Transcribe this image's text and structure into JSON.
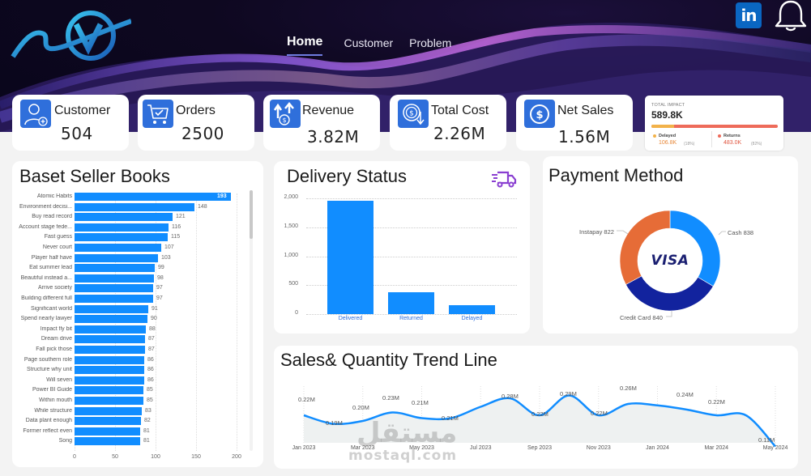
{
  "header": {
    "nav": [
      {
        "label": "Home",
        "active": true
      },
      {
        "label": "Customer",
        "active": false
      },
      {
        "label": "Problem",
        "active": false
      }
    ],
    "linkedin_label": "in",
    "icons": [
      "logo",
      "linkedin-icon",
      "bell-icon"
    ]
  },
  "kpis": [
    {
      "label": "Customer",
      "value": "504",
      "icon": "user-add-icon"
    },
    {
      "label": "Orders",
      "value": "2500",
      "icon": "cart-check-icon"
    },
    {
      "label": "Revenue",
      "value": "3.82M",
      "icon": "revenue-up-icon"
    },
    {
      "label": "Total Cost",
      "value": "2.26M",
      "icon": "cost-down-icon"
    },
    {
      "label": "Net Sales",
      "value": "1.56M",
      "icon": "dollar-circle-icon"
    }
  ],
  "impact": {
    "title": "TOTAL IMPACT",
    "value": "589.8K",
    "delayed_label": "Delayed",
    "delayed_value": "106.8K",
    "delayed_pct": "(18%)",
    "returns_label": "Returns",
    "returns_value": "483.0K",
    "returns_pct": "(82%)",
    "colors": {
      "delayed": "#f2b24a",
      "returns": "#ee6b5a"
    }
  },
  "books": {
    "title": "Baset Seller Books",
    "x_ticks": [
      "0",
      "50",
      "100",
      "150",
      "200"
    ],
    "items": [
      {
        "name": "Atomic Habits",
        "value": 193
      },
      {
        "name": "Environment decisi...",
        "value": 148
      },
      {
        "name": "Buy read record",
        "value": 121
      },
      {
        "name": "Account stage fede...",
        "value": 116
      },
      {
        "name": "Fast guess",
        "value": 115
      },
      {
        "name": "Never court",
        "value": 107
      },
      {
        "name": "Player half have",
        "value": 103
      },
      {
        "name": "Eat summer lead",
        "value": 99
      },
      {
        "name": "Beautiful instead a...",
        "value": 98
      },
      {
        "name": "Arrive society",
        "value": 97
      },
      {
        "name": "Building different full",
        "value": 97
      },
      {
        "name": "Significant world",
        "value": 91
      },
      {
        "name": "Spend nearly lawyer",
        "value": 90
      },
      {
        "name": "Impact fly bit",
        "value": 88
      },
      {
        "name": "Dream drive",
        "value": 87
      },
      {
        "name": "Fall pick those",
        "value": 87
      },
      {
        "name": "Page southern role",
        "value": 86
      },
      {
        "name": "Structure why unit",
        "value": 86
      },
      {
        "name": "Will seven",
        "value": 86
      },
      {
        "name": "Power BI Guide",
        "value": 85
      },
      {
        "name": "Within mouth",
        "value": 85
      },
      {
        "name": "While structure",
        "value": 83
      },
      {
        "name": "Data plant enough",
        "value": 82
      },
      {
        "name": "Former reflect even",
        "value": 81
      },
      {
        "name": "Song",
        "value": 81
      }
    ]
  },
  "delivery": {
    "title": "Delivery Status",
    "y_ticks": [
      "2,000",
      "1,500",
      "1,000",
      "500",
      "0"
    ],
    "categories": [
      "Delivered",
      "Returned",
      "Delayed"
    ],
    "values": [
      1960,
      380,
      160
    ]
  },
  "payment": {
    "title": "Payment Method",
    "center_label": "VISA",
    "slices": [
      {
        "label": "Cash 838",
        "name": "Cash",
        "value": 838,
        "color": "#118dff"
      },
      {
        "label": "Credit Card 840",
        "name": "Credit Card",
        "value": 840,
        "color": "#12239e"
      },
      {
        "label": "Instapay 822",
        "name": "Instapay",
        "value": 822,
        "color": "#e66c37"
      }
    ]
  },
  "trend": {
    "title": "Sales& Quantity Trend Line",
    "x_ticks": [
      "Jan 2023",
      "Mar 2023",
      "May 2023",
      "Jul 2023",
      "Sep 2023",
      "Nov 2023",
      "Jan 2024",
      "Mar 2024",
      "May 2024"
    ],
    "points": [
      {
        "month": "Jan 2023",
        "label": "0.22M"
      },
      {
        "month": "Feb 2023",
        "label": "0.19M"
      },
      {
        "month": "Mar 2023",
        "label": "0.20M"
      },
      {
        "month": "Apr 2023",
        "label": "0.23M"
      },
      {
        "month": "May 2023",
        "label": "0.21M"
      },
      {
        "month": "Jun 2023",
        "label": "0.21M"
      },
      {
        "month": "Jul 2023",
        "label": ""
      },
      {
        "month": "Aug 2023",
        "label": "0.28M"
      },
      {
        "month": "Sep 2023",
        "label": "0.22M"
      },
      {
        "month": "Oct 2023",
        "label": "0.29M"
      },
      {
        "month": "Nov 2023",
        "label": "0.22M"
      },
      {
        "month": "Dec 2023",
        "label": "0.26M"
      },
      {
        "month": "Feb 2024",
        "label": "0.24M"
      },
      {
        "month": "Mar 2024",
        "label": "0.22M"
      },
      {
        "month": "May 2024",
        "label": "0.11M"
      }
    ]
  },
  "watermark": {
    "arabic": "مستقل",
    "latin": "mostaql.com"
  },
  "chart_data": [
    {
      "type": "bar",
      "orientation": "horizontal",
      "title": "Baset Seller Books",
      "categories": [
        "Atomic Habits",
        "Environment decisi...",
        "Buy read record",
        "Account stage fede...",
        "Fast guess",
        "Never court",
        "Player half have",
        "Eat summer lead",
        "Beautiful instead a...",
        "Arrive society",
        "Building different full",
        "Significant world",
        "Spend nearly lawyer",
        "Impact fly bit",
        "Dream drive",
        "Fall pick those",
        "Page southern role",
        "Structure why unit",
        "Will seven",
        "Power BI Guide",
        "Within mouth",
        "While structure",
        "Data plant enough",
        "Former reflect even",
        "Song"
      ],
      "values": [
        193,
        148,
        121,
        116,
        115,
        107,
        103,
        99,
        98,
        97,
        97,
        91,
        90,
        88,
        87,
        87,
        86,
        86,
        86,
        85,
        85,
        83,
        82,
        81,
        81
      ],
      "xlim": [
        0,
        200
      ],
      "x_ticks": [
        0,
        50,
        100,
        150,
        200
      ],
      "grid": true
    },
    {
      "type": "bar",
      "title": "Delivery Status",
      "categories": [
        "Delivered",
        "Returned",
        "Delayed"
      ],
      "values": [
        1960,
        380,
        160
      ],
      "ylim": [
        0,
        2000
      ],
      "y_ticks": [
        0,
        500,
        1000,
        1500,
        2000
      ],
      "grid": true
    },
    {
      "type": "pie",
      "subtype": "donut",
      "title": "Payment Method",
      "categories": [
        "Cash",
        "Credit Card",
        "Instapay"
      ],
      "values": [
        838,
        840,
        822
      ],
      "colors": [
        "#118dff",
        "#12239e",
        "#e66c37"
      ]
    },
    {
      "type": "area",
      "title": "Sales& Quantity Trend Line",
      "x": [
        "Jan 2023",
        "Feb 2023",
        "Mar 2023",
        "Apr 2023",
        "May 2023",
        "Jun 2023",
        "Jul 2023",
        "Aug 2023",
        "Sep 2023",
        "Oct 2023",
        "Nov 2023",
        "Dec 2023",
        "Jan 2024",
        "Feb 2024",
        "Mar 2024",
        "Apr 2024",
        "May 2024"
      ],
      "values": [
        0.22,
        0.19,
        0.2,
        0.23,
        0.21,
        0.21,
        0.25,
        0.28,
        0.22,
        0.29,
        0.22,
        0.26,
        0.255,
        0.24,
        0.22,
        0.22,
        0.11
      ],
      "unit": "M",
      "x_ticks": [
        "Jan 2023",
        "Mar 2023",
        "May 2023",
        "Jul 2023",
        "Sep 2023",
        "Nov 2023",
        "Jan 2024",
        "Mar 2024",
        "May 2024"
      ]
    },
    {
      "type": "bar",
      "orientation": "horizontal",
      "stacked": true,
      "title": "TOTAL IMPACT",
      "categories": [
        "Delayed",
        "Returns"
      ],
      "values": [
        106.8,
        483.0
      ],
      "unit": "K",
      "total": 589.8
    }
  ]
}
